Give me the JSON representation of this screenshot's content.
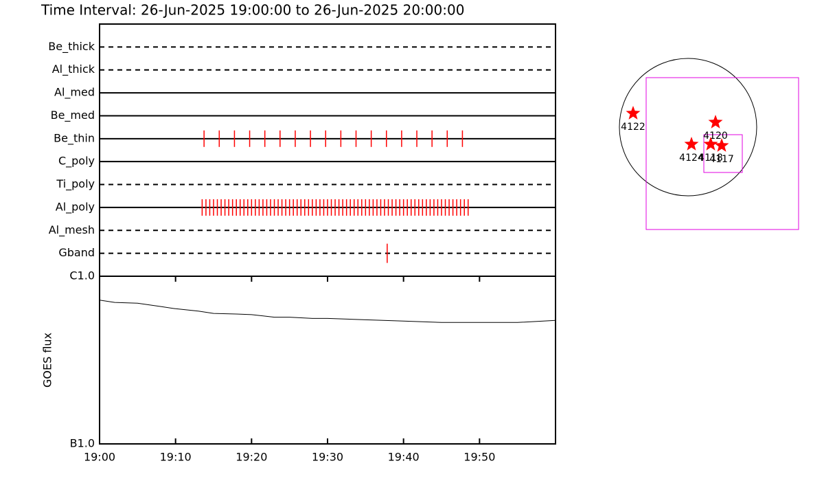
{
  "title": "Time Interval: 26-Jun-2025 19:00:00 to 26-Jun-2025 20:00:00",
  "chart_data": [
    {
      "type": "event",
      "categories": [
        "Be_thick",
        "Al_thick",
        "Al_med",
        "Be_med",
        "Be_thin",
        "C_poly",
        "Ti_poly",
        "Al_poly",
        "Al_mesh",
        "Gband"
      ],
      "line_styles": [
        "dashed",
        "dashed",
        "solid",
        "solid",
        "solid",
        "solid",
        "dashed",
        "solid",
        "dashed",
        "dashed"
      ],
      "events": [
        [],
        [],
        [],
        [],
        [
          13.75,
          15.75,
          17.75,
          19.75,
          21.75,
          23.75,
          25.75,
          27.75,
          29.75,
          31.75,
          33.75,
          35.75,
          37.75,
          39.75,
          41.75,
          43.75,
          45.75,
          47.75
        ],
        [],
        [],
        [
          13.5,
          14,
          14.5,
          15,
          15.5,
          16,
          16.5,
          17,
          17.5,
          18,
          18.5,
          19,
          19.5,
          20,
          20.5,
          21,
          21.5,
          22,
          22.5,
          23,
          23.5,
          24,
          24.5,
          25,
          25.5,
          26,
          26.5,
          27,
          27.5,
          28,
          28.5,
          29,
          29.5,
          30,
          30.5,
          31,
          31.5,
          32,
          32.5,
          33,
          33.5,
          34,
          34.5,
          35,
          35.5,
          36,
          36.5,
          37,
          37.5,
          38,
          38.5,
          39,
          39.5,
          40,
          40.5,
          41,
          41.5,
          42,
          42.5,
          43,
          43.5,
          44,
          44.5,
          45,
          45.5,
          46,
          46.5,
          47,
          47.5,
          48,
          48.5
        ],
        [],
        [
          37.85
        ]
      ],
      "color": "#ff0000",
      "xlim": [
        0,
        60
      ]
    },
    {
      "type": "line",
      "ylabel": "GOES flux",
      "x": [
        0,
        2,
        5,
        8,
        10,
        13,
        15,
        18,
        20,
        23,
        25,
        28,
        30,
        35,
        40,
        45,
        50,
        55,
        60
      ],
      "values": [
        7.2e-07,
        6.98e-07,
        6.9e-07,
        6.6e-07,
        6.4e-07,
        6.2e-07,
        6e-07,
        5.95e-07,
        5.9e-07,
        5.7e-07,
        5.7e-07,
        5.6e-07,
        5.6e-07,
        5.5e-07,
        5.4e-07,
        5.3e-07,
        5.3e-07,
        5.3e-07,
        5.45e-07
      ],
      "color": "#000000",
      "log_scale": true,
      "xlim": [
        0,
        60
      ],
      "xticks": [
        {
          "value": 0,
          "label": "19:00"
        },
        {
          "value": 10,
          "label": "19:10"
        },
        {
          "value": 20,
          "label": "19:20"
        },
        {
          "value": 30,
          "label": "19:30"
        },
        {
          "value": 40,
          "label": "19:40"
        },
        {
          "value": 50,
          "label": "19:50"
        }
      ],
      "ylim": [
        1e-07,
        1e-06
      ],
      "yticks": [
        {
          "value": 1e-07,
          "label": "B1.0"
        },
        {
          "value": 1e-06,
          "label": "C1.0"
        }
      ]
    }
  ],
  "map": {
    "regions": [
      "4122",
      "4120",
      "4124",
      "4118",
      "4117"
    ]
  }
}
